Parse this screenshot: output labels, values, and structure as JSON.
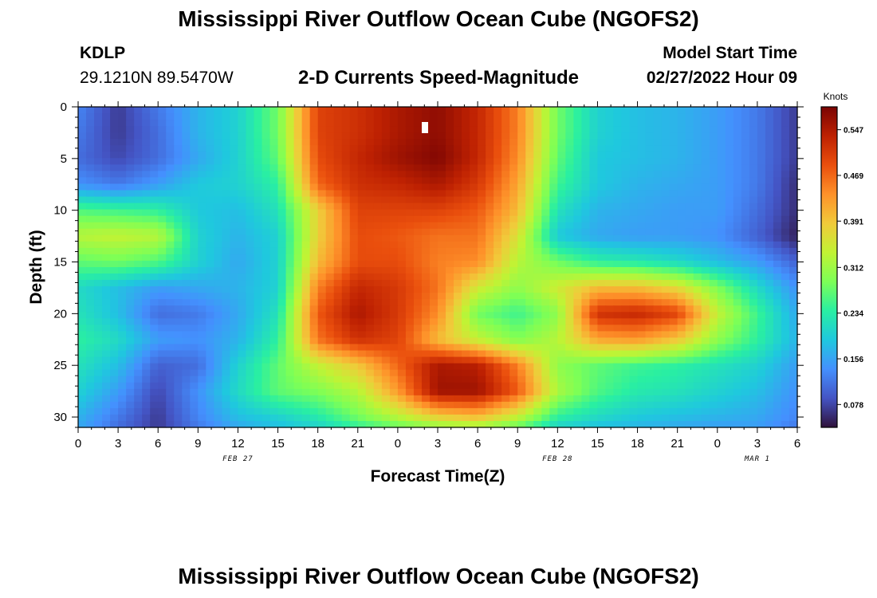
{
  "header": {
    "title": "Mississippi River Outflow Ocean Cube (NGOFS2)",
    "station_id": "KDLP",
    "coords": "29.1210N  89.5470W",
    "subtitle": "2-D Currents Speed-Magnitude",
    "model_start_label": "Model Start Time",
    "model_start_value": "02/27/2022 Hour 09"
  },
  "footer": {
    "title": "Mississippi River Outflow Ocean Cube (NGOFS2)"
  },
  "chart_data": {
    "type": "heatmap",
    "title": "2-D Currents Speed-Magnitude",
    "xlabel": "Forecast Time(Z)",
    "ylabel": "Depth (ft)",
    "x_tick_labels": [
      "0",
      "3",
      "6",
      "9",
      "12",
      "15",
      "18",
      "21",
      "0",
      "3",
      "6",
      "9",
      "12",
      "15",
      "18",
      "21",
      "0",
      "3",
      "6"
    ],
    "date_labels": [
      {
        "label": "FEB 27",
        "at_hour": 12
      },
      {
        "label": "FEB 28",
        "at_hour": 36
      },
      {
        "label": "MAR 1",
        "at_hour": 51
      }
    ],
    "xlim_hours": [
      0,
      54
    ],
    "y_ticks": [
      0,
      5,
      10,
      15,
      20,
      25,
      30
    ],
    "ylim": [
      0,
      31
    ],
    "y_inverted": true,
    "colorbar": {
      "unit": "Knots",
      "ticks": [
        "0.078",
        "0.156",
        "0.234",
        "0.312",
        "0.391",
        "0.469",
        "0.547"
      ],
      "min": 0.039,
      "max": 0.586,
      "colors": [
        "#30123b",
        "#4454c4",
        "#4490fe",
        "#1fc8de",
        "#29efa2",
        "#7dff56",
        "#c1f334",
        "#f1ca3a",
        "#fe922a",
        "#ea4f0d",
        "#be2102",
        "#7a0403"
      ]
    },
    "speed_grid": {
      "hours": [
        0,
        3,
        6,
        9,
        12,
        15,
        18,
        21,
        24,
        27,
        30,
        33,
        36,
        39,
        42,
        45,
        48,
        51,
        54
      ],
      "depths": [
        0,
        2.5,
        5,
        7.5,
        10,
        12.5,
        15,
        17.5,
        20,
        22.5,
        25,
        27.5,
        30,
        31
      ],
      "values": [
        [
          0.13,
          0.07,
          0.12,
          0.17,
          0.2,
          0.28,
          0.5,
          0.52,
          0.55,
          0.57,
          0.53,
          0.45,
          0.28,
          0.2,
          0.18,
          0.17,
          0.15,
          0.12,
          0.07
        ],
        [
          0.12,
          0.07,
          0.11,
          0.17,
          0.2,
          0.28,
          0.5,
          0.52,
          0.55,
          0.57,
          0.53,
          0.45,
          0.28,
          0.2,
          0.18,
          0.17,
          0.15,
          0.12,
          0.07
        ],
        [
          0.11,
          0.08,
          0.11,
          0.16,
          0.2,
          0.27,
          0.49,
          0.53,
          0.56,
          0.58,
          0.53,
          0.44,
          0.27,
          0.19,
          0.18,
          0.17,
          0.15,
          0.12,
          0.07
        ],
        [
          0.14,
          0.12,
          0.15,
          0.19,
          0.2,
          0.24,
          0.47,
          0.52,
          0.53,
          0.55,
          0.51,
          0.42,
          0.25,
          0.19,
          0.17,
          0.16,
          0.15,
          0.12,
          0.06
        ],
        [
          0.26,
          0.25,
          0.24,
          0.19,
          0.18,
          0.22,
          0.38,
          0.5,
          0.5,
          0.5,
          0.48,
          0.4,
          0.22,
          0.17,
          0.16,
          0.15,
          0.15,
          0.11,
          0.06
        ],
        [
          0.33,
          0.34,
          0.33,
          0.2,
          0.17,
          0.2,
          0.38,
          0.49,
          0.48,
          0.46,
          0.46,
          0.36,
          0.19,
          0.16,
          0.15,
          0.15,
          0.14,
          0.1,
          0.05
        ],
        [
          0.27,
          0.28,
          0.26,
          0.2,
          0.16,
          0.2,
          0.4,
          0.49,
          0.49,
          0.45,
          0.44,
          0.33,
          0.28,
          0.24,
          0.23,
          0.21,
          0.18,
          0.15,
          0.1
        ],
        [
          0.21,
          0.18,
          0.15,
          0.16,
          0.17,
          0.2,
          0.45,
          0.53,
          0.51,
          0.46,
          0.35,
          0.3,
          0.35,
          0.4,
          0.4,
          0.37,
          0.29,
          0.21,
          0.14
        ],
        [
          0.22,
          0.18,
          0.11,
          0.12,
          0.16,
          0.22,
          0.48,
          0.55,
          0.51,
          0.44,
          0.28,
          0.25,
          0.3,
          0.52,
          0.53,
          0.5,
          0.34,
          0.25,
          0.16
        ],
        [
          0.24,
          0.21,
          0.15,
          0.14,
          0.17,
          0.24,
          0.46,
          0.52,
          0.5,
          0.4,
          0.34,
          0.29,
          0.33,
          0.42,
          0.43,
          0.39,
          0.3,
          0.24,
          0.17
        ],
        [
          0.22,
          0.18,
          0.1,
          0.11,
          0.2,
          0.27,
          0.34,
          0.39,
          0.47,
          0.55,
          0.54,
          0.45,
          0.3,
          0.27,
          0.25,
          0.24,
          0.22,
          0.2,
          0.15
        ],
        [
          0.2,
          0.15,
          0.08,
          0.14,
          0.21,
          0.27,
          0.29,
          0.33,
          0.43,
          0.56,
          0.56,
          0.48,
          0.32,
          0.26,
          0.23,
          0.22,
          0.2,
          0.18,
          0.14
        ],
        [
          0.17,
          0.12,
          0.07,
          0.13,
          0.18,
          0.2,
          0.23,
          0.28,
          0.33,
          0.38,
          0.4,
          0.34,
          0.24,
          0.21,
          0.19,
          0.18,
          0.17,
          0.16,
          0.13
        ],
        [
          0.16,
          0.11,
          0.07,
          0.12,
          0.16,
          0.18,
          0.2,
          0.24,
          0.27,
          0.3,
          0.31,
          0.27,
          0.2,
          0.18,
          0.17,
          0.16,
          0.15,
          0.15,
          0.12
        ]
      ]
    }
  }
}
